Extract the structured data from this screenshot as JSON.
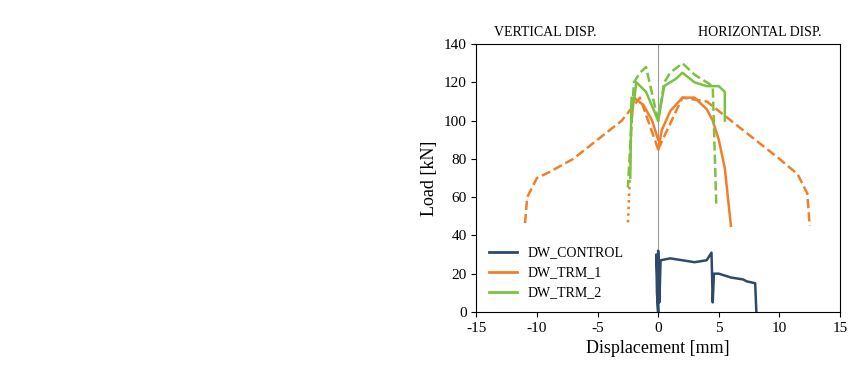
{
  "chart_data": {
    "type": "line",
    "annotations": [
      "VERTICAL DISP.",
      "HORIZONTAL DISP."
    ],
    "x_label": "Displacement [mm]",
    "y_label": "Load [kN]",
    "xlim": [
      -15,
      15
    ],
    "xticks": [
      -15,
      -10,
      -5,
      0,
      5,
      10,
      15
    ],
    "ylim": [
      0,
      140
    ],
    "yticks": [
      0,
      20,
      40,
      60,
      80,
      100,
      120,
      140
    ],
    "legend": "lower left",
    "series": [
      {
        "name": "DW_CONTROL",
        "color": "#2e4a6b",
        "line_style": "solid",
        "x": [
          0,
          0,
          0.1,
          0.2,
          1,
          2,
          3,
          4,
          4.4,
          4.5,
          4.6,
          5,
          6,
          7,
          7.3,
          8,
          8.1
        ],
        "values": [
          0,
          32,
          5,
          27,
          28,
          27,
          26,
          27,
          31,
          5,
          20,
          20,
          18,
          17,
          16,
          15,
          0
        ]
      },
      {
        "color": "#2e4a6b",
        "line_style": "solid",
        "x": [
          0,
          -0.1,
          -0.15,
          -0.1,
          0
        ],
        "values": [
          0,
          25,
          30,
          10,
          0
        ]
      },
      {
        "name": "DW_TRM_1",
        "color": "#f07f2a",
        "line_style": "solid",
        "x": [
          0,
          0.3,
          1,
          2,
          3,
          4,
          4.5,
          5,
          5.5,
          6
        ],
        "values": [
          85,
          95,
          105,
          112,
          112,
          106,
          100,
          90,
          75,
          45
        ]
      },
      {
        "color": "#f07f2a",
        "line_style": "solid",
        "x": [
          0,
          -0.5,
          -1.2,
          -2,
          -2.2
        ],
        "values": [
          90,
          100,
          108,
          112,
          100
        ]
      },
      {
        "color": "#f07f2a",
        "line_style": "dotted",
        "x": [
          -2.2,
          -2.3,
          -2.4,
          -2.5
        ],
        "values": [
          100,
          80,
          60,
          45
        ]
      },
      {
        "color": "#f07f2a",
        "line_style": "dashed",
        "x": [
          0,
          -1.5,
          -2,
          -3,
          -5,
          -7,
          -9,
          -10,
          -10.8,
          -11
        ],
        "values": [
          85,
          112,
          108,
          100,
          90,
          80,
          73,
          70,
          60,
          45
        ]
      },
      {
        "color": "#f07f2a",
        "line_style": "dashed",
        "x": [
          0,
          2,
          4,
          6,
          8,
          10,
          11.5,
          12.3,
          12.5
        ],
        "values": [
          85,
          112,
          110,
          100,
          90,
          80,
          72,
          62,
          45
        ]
      },
      {
        "name": "DW_TRM_2",
        "color": "#7cc242",
        "line_style": "solid",
        "x": [
          0,
          0.5,
          1.5,
          2,
          3,
          4,
          5,
          5.5,
          5.5
        ],
        "values": [
          100,
          118,
          122,
          125,
          120,
          118,
          118,
          115,
          100
        ]
      },
      {
        "color": "#7cc242",
        "line_style": "solid",
        "x": [
          0,
          -1,
          -1.8,
          -2,
          -2.2,
          -2.3
        ],
        "values": [
          100,
          115,
          120,
          110,
          112,
          70
        ]
      },
      {
        "color": "#7cc242",
        "line_style": "dashed",
        "x": [
          0,
          -1,
          -1.5,
          -2,
          -2.5
        ],
        "values": [
          100,
          128,
          125,
          120,
          65
        ]
      },
      {
        "color": "#7cc242",
        "line_style": "dashed",
        "x": [
          0,
          0.5,
          1,
          2,
          3,
          4,
          4.5,
          4.8
        ],
        "values": [
          100,
          120,
          125,
          130,
          124,
          120,
          118,
          55
        ]
      }
    ]
  }
}
